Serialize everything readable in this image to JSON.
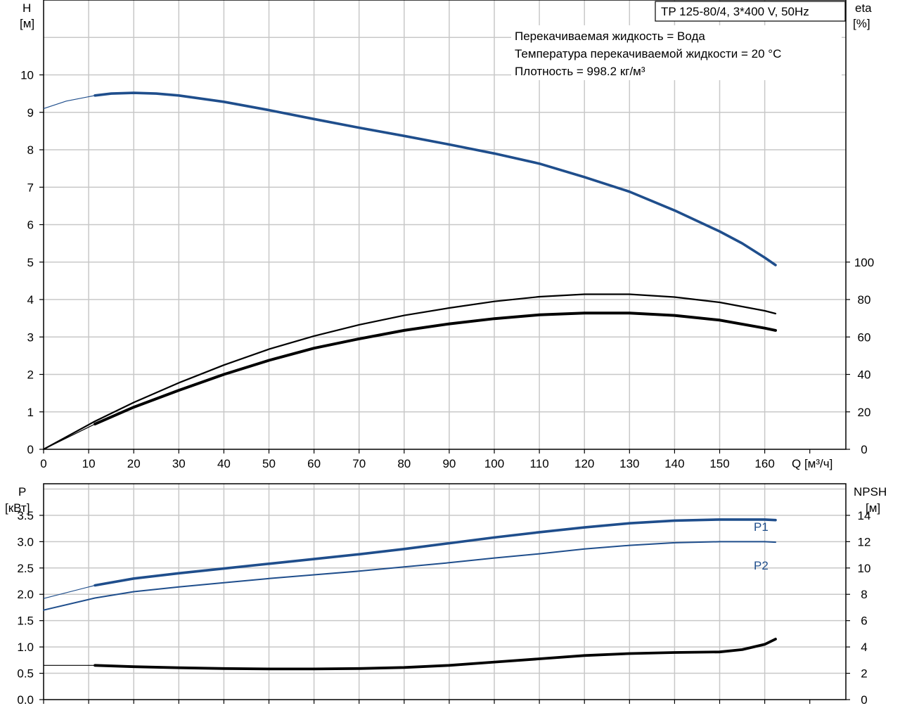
{
  "chart_data": [
    {
      "type": "line",
      "id": "top",
      "title_box": "TP 125-80/4, 3*400 V, 50Hz",
      "info_lines": [
        "Перекачиваемая жидкость = Вода",
        "Температура перекачиваемой жидкости = 20 °C",
        "Плотность = 998.2 кг/м³"
      ],
      "y_left_label": [
        "H",
        "[м]"
      ],
      "y_right_label": [
        "eta",
        "[%]"
      ],
      "x_label": "Q [м³/ч]",
      "xlim": [
        0,
        178
      ],
      "x_ticks": [
        0,
        10,
        20,
        30,
        40,
        50,
        60,
        70,
        80,
        90,
        100,
        110,
        120,
        130,
        140,
        150,
        160
      ],
      "ylim": [
        0,
        12
      ],
      "y_left_ticks": [
        0,
        1,
        2,
        3,
        4,
        5,
        6,
        7,
        8,
        9,
        10
      ],
      "y2lim": [
        0,
        240
      ],
      "y_right_ticks": [
        0,
        20,
        40,
        60,
        80,
        100
      ],
      "grid": true,
      "series": [
        {
          "key": "H",
          "axis": "left",
          "color": "#1f4e8c",
          "x": [
            0,
            5,
            11.4,
            15,
            20,
            25,
            30,
            40,
            50,
            60,
            70,
            80,
            90,
            100,
            110,
            120,
            130,
            140,
            150,
            155,
            160,
            162.4
          ],
          "y": [
            9.1,
            9.3,
            9.45,
            9.5,
            9.52,
            9.5,
            9.45,
            9.28,
            9.06,
            8.82,
            8.59,
            8.37,
            8.14,
            7.9,
            7.63,
            7.27,
            6.88,
            6.38,
            5.82,
            5.5,
            5.12,
            4.92
          ],
          "solid_from": 11.4
        },
        {
          "key": "eta_thin",
          "axis": "right",
          "color": "#000000",
          "x": [
            0,
            11.4,
            20,
            30,
            40,
            50,
            60,
            70,
            80,
            90,
            100,
            110,
            120,
            130,
            140,
            150,
            160,
            162.4
          ],
          "y": [
            0,
            15,
            25,
            35.5,
            45,
            53.5,
            60.5,
            66.5,
            71.5,
            75.5,
            79,
            81.5,
            82.8,
            82.8,
            81.3,
            78.5,
            74,
            72.5
          ]
        },
        {
          "key": "eta_thick",
          "axis": "right",
          "color": "#000000",
          "x": [
            0,
            11.4,
            20,
            30,
            40,
            50,
            60,
            70,
            80,
            90,
            100,
            110,
            120,
            130,
            140,
            150,
            160,
            162.4
          ],
          "y": [
            0,
            13.5,
            22.5,
            31.5,
            40,
            47.5,
            54,
            59,
            63.5,
            67,
            69.8,
            71.8,
            72.8,
            72.8,
            71.5,
            69,
            64.7,
            63.5
          ],
          "solid_from": 11.4
        }
      ]
    },
    {
      "type": "line",
      "id": "bottom",
      "y_left_label": [
        "P",
        "[кВт]"
      ],
      "y_right_label": [
        "NPSH",
        "[м]"
      ],
      "xlim": [
        0,
        178
      ],
      "ylim": [
        0,
        4.1
      ],
      "y_left_ticks": [
        0.0,
        0.5,
        1.0,
        1.5,
        2.0,
        2.5,
        3.0,
        3.5
      ],
      "y2lim": [
        0,
        16.4
      ],
      "y_right_ticks": [
        0,
        2,
        4,
        6,
        8,
        10,
        12,
        14
      ],
      "grid": true,
      "series": [
        {
          "key": "P1",
          "name": "P1",
          "axis": "left",
          "color": "#1f4e8c",
          "x": [
            0,
            11.4,
            20,
            30,
            40,
            50,
            60,
            70,
            80,
            90,
            100,
            110,
            120,
            130,
            140,
            150,
            160,
            162.4
          ],
          "y": [
            1.92,
            2.17,
            2.3,
            2.4,
            2.49,
            2.58,
            2.67,
            2.76,
            2.86,
            2.97,
            3.08,
            3.18,
            3.27,
            3.35,
            3.4,
            3.42,
            3.42,
            3.41
          ],
          "solid_from": 11.4
        },
        {
          "key": "P2",
          "name": "P2",
          "axis": "left",
          "color": "#1f4e8c",
          "x": [
            0,
            11.4,
            20,
            30,
            40,
            50,
            60,
            70,
            80,
            90,
            100,
            110,
            120,
            130,
            140,
            150,
            160,
            162.4
          ],
          "y": [
            1.7,
            1.93,
            2.05,
            2.14,
            2.22,
            2.3,
            2.37,
            2.44,
            2.52,
            2.6,
            2.69,
            2.77,
            2.86,
            2.93,
            2.98,
            3.0,
            3.0,
            2.99
          ]
        },
        {
          "key": "NPSH",
          "axis": "right",
          "color": "#000000",
          "x": [
            0,
            11.4,
            20,
            30,
            40,
            50,
            60,
            70,
            80,
            90,
            100,
            110,
            120,
            130,
            140,
            150,
            155,
            160,
            162.4
          ],
          "y": [
            2.6,
            2.6,
            2.5,
            2.42,
            2.36,
            2.33,
            2.33,
            2.36,
            2.44,
            2.6,
            2.85,
            3.1,
            3.35,
            3.5,
            3.58,
            3.62,
            3.8,
            4.2,
            4.6
          ],
          "solid_from": 11.4
        }
      ]
    }
  ]
}
